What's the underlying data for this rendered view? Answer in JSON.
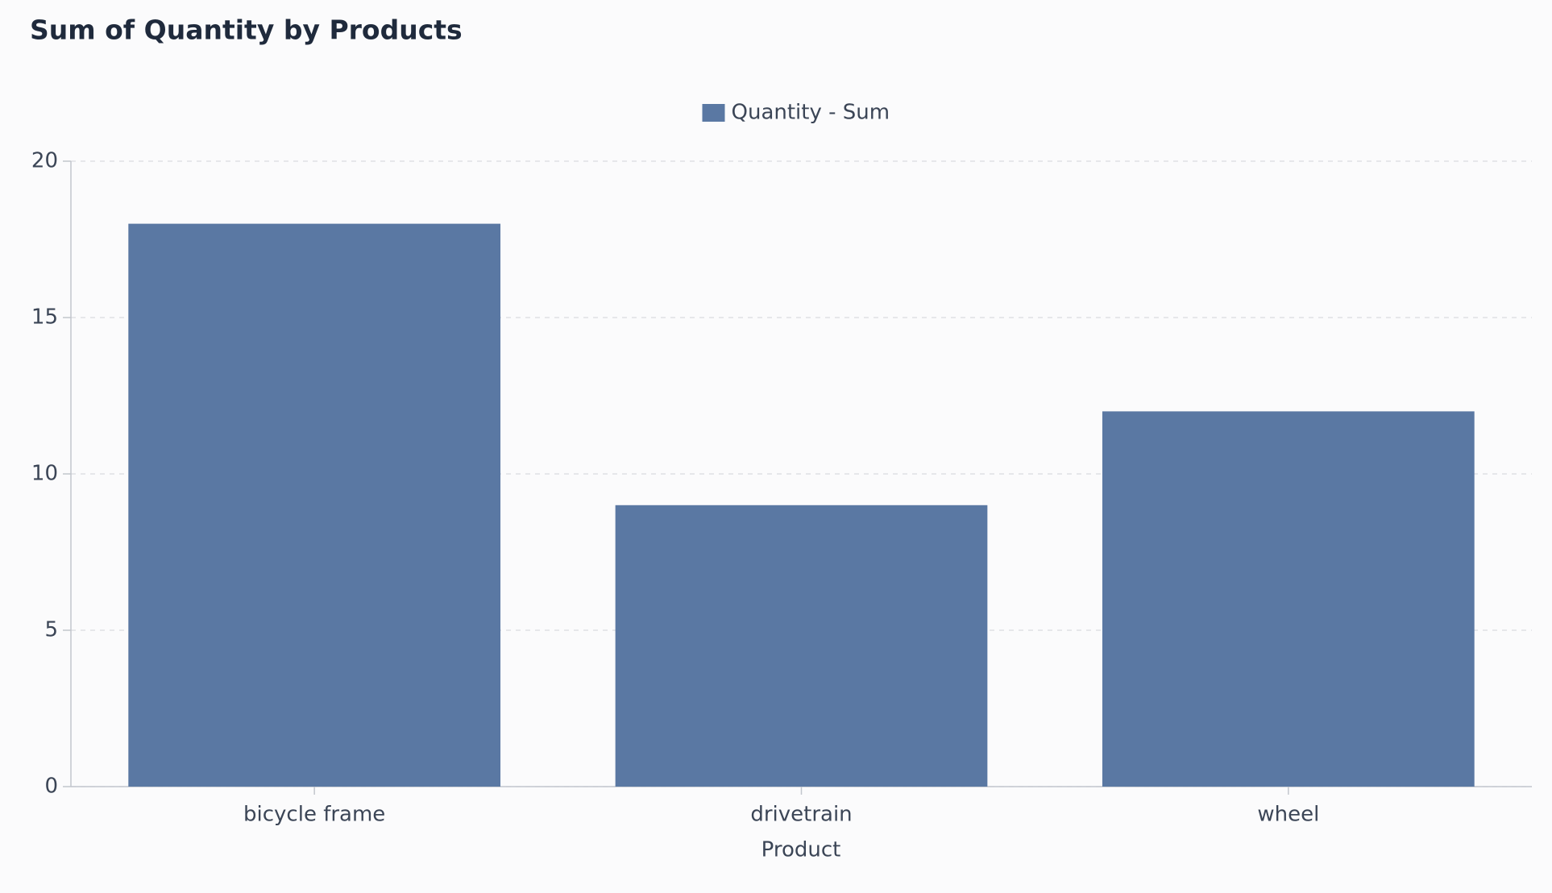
{
  "chart_data": {
    "type": "bar",
    "title": "Sum of Quantity by Products",
    "categories": [
      "bicycle frame",
      "drivetrain",
      "wheel"
    ],
    "series": [
      {
        "name": "Quantity - Sum",
        "color": "#5a78a3",
        "values": [
          18,
          9,
          12
        ]
      }
    ],
    "x_label": "Product",
    "ylim": [
      0,
      20
    ],
    "yticks": [
      0,
      5,
      10,
      15,
      20
    ],
    "grid": true,
    "legend": "top"
  }
}
